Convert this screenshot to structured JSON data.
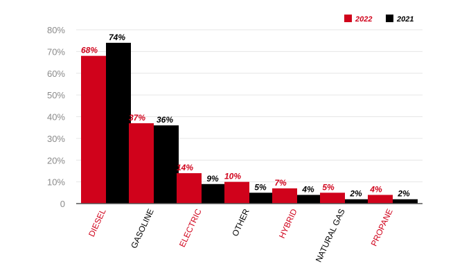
{
  "chart_data": {
    "type": "bar",
    "categories": [
      "DIESEL",
      "GASOLINE",
      "ELECTRIC",
      "OTHER",
      "HYBRID",
      "NATURAL GAS",
      "PROPANE"
    ],
    "series": [
      {
        "name": "2022",
        "values": [
          68,
          37,
          14,
          10,
          7,
          5,
          4
        ],
        "labels": [
          "68%",
          "37%",
          "14%",
          "10%",
          "7%",
          "5%",
          "4%"
        ]
      },
      {
        "name": "2021",
        "values": [
          74,
          36,
          9,
          5,
          4,
          2,
          2
        ],
        "labels": [
          "74%",
          "36%",
          "9%",
          "5%",
          "4%",
          "2%",
          "2%"
        ]
      }
    ],
    "y_ticks": [
      "0",
      "10%",
      "20%",
      "30%",
      "40%",
      "50%",
      "60%",
      "70%",
      "80%"
    ],
    "ylim": [
      0,
      80
    ],
    "grid": true,
    "legend": "top-right",
    "colors": {
      "2022": "#d0021b",
      "2021": "#000000",
      "red_label": "#d0021b",
      "black_label": "#000000"
    },
    "category_label_colors": [
      "red",
      "black",
      "red",
      "black",
      "red",
      "black",
      "red"
    ]
  }
}
